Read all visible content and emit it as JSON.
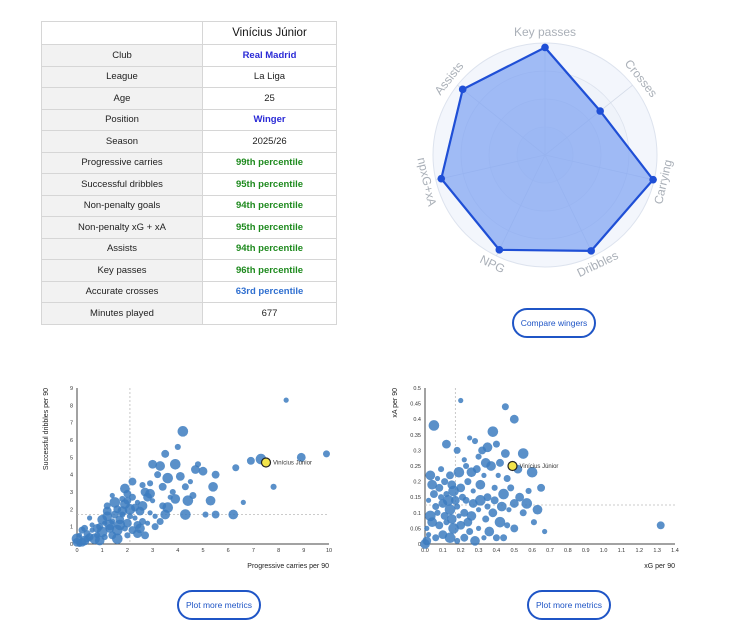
{
  "profile": {
    "player_name": "Vinícius Júnior",
    "rows": [
      {
        "label": "Club",
        "value": "Real Madrid",
        "style": "blue"
      },
      {
        "label": "League",
        "value": "La Liga",
        "style": "plain"
      },
      {
        "label": "Age",
        "value": "25",
        "style": "plain"
      },
      {
        "label": "Position",
        "value": "Winger",
        "style": "blue"
      },
      {
        "label": "Season",
        "value": "2025/26",
        "style": "plain"
      },
      {
        "label": "Progressive carries",
        "value": "99th percentile",
        "style": "green"
      },
      {
        "label": "Successful dribbles",
        "value": "95th percentile",
        "style": "green"
      },
      {
        "label": "Non-penalty goals",
        "value": "94th percentile",
        "style": "green"
      },
      {
        "label": "Non-penalty xG + xA",
        "value": "95th percentile",
        "style": "green"
      },
      {
        "label": "Assists",
        "value": "94th percentile",
        "style": "green"
      },
      {
        "label": "Key passes",
        "value": "96th percentile",
        "style": "green"
      },
      {
        "label": "Accurate crosses",
        "value": "63rd percentile",
        "style": "lightblue"
      },
      {
        "label": "Minutes played",
        "value": "677",
        "style": "plain"
      }
    ]
  },
  "buttons": {
    "compare": "Compare wingers",
    "plot_more_1": "Plot more metrics",
    "plot_more_2": "Plot more metrics"
  },
  "colors": {
    "radar_fill": "#7fa3f2",
    "radar_stroke": "#1f4fd6",
    "scatter_point": "#3d7cc0",
    "highlight": "#f2e44a",
    "button": "#1f55c6"
  },
  "chart_data": [
    {
      "type": "radar",
      "axes": [
        "Key passes",
        "Crosses",
        "Carrying",
        "Dribbles",
        "NPG",
        "npxG+xA",
        "Assists"
      ],
      "values": [
        96,
        63,
        99,
        95,
        94,
        95,
        94
      ],
      "range": [
        0,
        100
      ]
    },
    {
      "type": "scatter",
      "xlabel": "Progressive carries per 90",
      "ylabel": "Successful dribbles per 90",
      "xlim": [
        0,
        10
      ],
      "ylim": [
        0,
        9
      ],
      "xticks": [
        "0",
        "1",
        "2",
        "3",
        "4",
        "5",
        "6",
        "7",
        "8",
        "9",
        "10"
      ],
      "yticks": [
        "0",
        "1",
        "2",
        "3",
        "4",
        "5",
        "6",
        "7",
        "8",
        "9"
      ],
      "x_ref": 2.1,
      "y_ref": 1.7,
      "highlight": {
        "name": "Vinícius Júnior",
        "x": 7.5,
        "y": 4.7
      },
      "points": [
        [
          8.3,
          8.3
        ],
        [
          9.9,
          5.2
        ],
        [
          8.9,
          5.0
        ],
        [
          7.3,
          4.9
        ],
        [
          7.8,
          3.3
        ],
        [
          6.9,
          4.8
        ],
        [
          5.3,
          2.5
        ],
        [
          6.6,
          2.4
        ],
        [
          6.3,
          4.4
        ],
        [
          5.0,
          4.2
        ],
        [
          4.2,
          6.5
        ],
        [
          4.0,
          5.6
        ],
        [
          5.5,
          4.0
        ],
        [
          5.4,
          3.3
        ],
        [
          4.5,
          3.6
        ],
        [
          4.3,
          3.3
        ],
        [
          4.1,
          3.9
        ],
        [
          4.4,
          2.5
        ],
        [
          3.8,
          3.0
        ],
        [
          3.5,
          5.2
        ],
        [
          3.3,
          4.5
        ],
        [
          3.0,
          2.5
        ],
        [
          3.2,
          4.0
        ],
        [
          2.7,
          3.0
        ],
        [
          4.3,
          1.7
        ],
        [
          5.1,
          1.7
        ],
        [
          5.5,
          1.7
        ],
        [
          6.2,
          1.7
        ],
        [
          2.4,
          2.4
        ],
        [
          2.2,
          2.7
        ],
        [
          2.8,
          2.7
        ],
        [
          3.6,
          2.1
        ],
        [
          2.9,
          3.5
        ],
        [
          3.4,
          3.3
        ],
        [
          3.9,
          2.6
        ],
        [
          3.1,
          1.6
        ],
        [
          3.4,
          2.2
        ],
        [
          2.5,
          1.9
        ],
        [
          2.1,
          2.0
        ],
        [
          1.8,
          1.7
        ],
        [
          1.6,
          2.0
        ],
        [
          1.9,
          2.3
        ],
        [
          2.3,
          1.5
        ],
        [
          2.6,
          1.3
        ],
        [
          2.0,
          1.2
        ],
        [
          1.7,
          1.1
        ],
        [
          1.4,
          1.3
        ],
        [
          1.5,
          1.7
        ],
        [
          1.2,
          1.6
        ],
        [
          1.1,
          1.2
        ],
        [
          0.9,
          1.0
        ],
        [
          1.3,
          0.9
        ],
        [
          1.6,
          0.8
        ],
        [
          1.9,
          0.9
        ],
        [
          2.2,
          0.8
        ],
        [
          2.5,
          0.9
        ],
        [
          2.8,
          1.2
        ],
        [
          3.1,
          1.0
        ],
        [
          2.4,
          0.6
        ],
        [
          1.0,
          0.7
        ],
        [
          0.8,
          0.5
        ],
        [
          0.5,
          0.4
        ],
        [
          0.3,
          0.2
        ],
        [
          0.6,
          0.8
        ],
        [
          0.4,
          0.6
        ],
        [
          0.2,
          0.1
        ],
        [
          0.7,
          0.3
        ],
        [
          1.1,
          0.4
        ],
        [
          1.4,
          0.5
        ],
        [
          0.9,
          0.2
        ],
        [
          0.1,
          0.5
        ],
        [
          0.3,
          0.9
        ],
        [
          1.2,
          1.9
        ],
        [
          1.5,
          2.4
        ],
        [
          1.8,
          2.6
        ],
        [
          2.0,
          2.9
        ],
        [
          2.6,
          2.2
        ],
        [
          2.9,
          1.8
        ],
        [
          3.3,
          1.3
        ],
        [
          1.7,
          1.4
        ],
        [
          1.3,
          1.1
        ],
        [
          2.1,
          1.6
        ],
        [
          2.4,
          1.1
        ],
        [
          1.0,
          1.4
        ],
        [
          0.6,
          1.1
        ],
        [
          0.4,
          0.3
        ],
        [
          0.8,
          0.9
        ],
        [
          1.6,
          0.3
        ],
        [
          2.0,
          0.5
        ],
        [
          2.7,
          0.5
        ],
        [
          3.5,
          1.7
        ],
        [
          3.7,
          2.7
        ],
        [
          4.6,
          2.8
        ],
        [
          4.7,
          4.3
        ],
        [
          3.6,
          3.8
        ],
        [
          2.6,
          3.4
        ],
        [
          2.2,
          3.6
        ],
        [
          1.9,
          3.2
        ],
        [
          1.4,
          2.8
        ],
        [
          1.2,
          2.2
        ],
        [
          3.0,
          4.6
        ],
        [
          3.9,
          4.6
        ],
        [
          4.8,
          4.6
        ],
        [
          2.3,
          2.1
        ],
        [
          1.8,
          1.9
        ],
        [
          0.5,
          1.5
        ],
        [
          0.2,
          0.8
        ],
        [
          0.0,
          0.1
        ],
        [
          0.0,
          0.3
        ],
        [
          0.1,
          0.0
        ],
        [
          2.0,
          2.5
        ],
        [
          2.9,
          2.9
        ]
      ]
    },
    {
      "type": "scatter",
      "xlabel": "xG per 90",
      "ylabel": "xA per 90",
      "xlim": [
        0,
        1.4
      ],
      "ylim": [
        0,
        0.5
      ],
      "xticks": [
        "0.0",
        "0.1",
        "0.2",
        "0.3",
        "0.4",
        "0.5",
        "0.6",
        "0.7",
        "0.8",
        "0.9",
        "1.0",
        "1.1",
        "1.2",
        "1.3",
        "1.4"
      ],
      "yticks": [
        "0",
        "0.05",
        "0.1",
        "0.15",
        "0.2",
        "0.25",
        "0.3",
        "0.35",
        "0.4",
        "0.45",
        "0.5"
      ],
      "x_ref": 0.17,
      "y_ref": 0.125,
      "highlight": {
        "name": "Vinícius Júnior",
        "x": 0.49,
        "y": 0.25
      },
      "points": [
        [
          0.2,
          0.46
        ],
        [
          0.45,
          0.44
        ],
        [
          0.5,
          0.4
        ],
        [
          0.38,
          0.36
        ],
        [
          0.28,
          0.33
        ],
        [
          0.32,
          0.3
        ],
        [
          0.35,
          0.31
        ],
        [
          0.25,
          0.34
        ],
        [
          0.4,
          0.32
        ],
        [
          0.45,
          0.29
        ],
        [
          0.55,
          0.29
        ],
        [
          0.3,
          0.28
        ],
        [
          0.42,
          0.26
        ],
        [
          0.37,
          0.25
        ],
        [
          0.22,
          0.27
        ],
        [
          0.18,
          0.3
        ],
        [
          0.12,
          0.32
        ],
        [
          0.05,
          0.38
        ],
        [
          0.09,
          0.24
        ],
        [
          0.14,
          0.22
        ],
        [
          0.26,
          0.23
        ],
        [
          0.33,
          0.22
        ],
        [
          0.46,
          0.21
        ],
        [
          0.52,
          0.24
        ],
        [
          0.6,
          0.23
        ],
        [
          0.58,
          0.17
        ],
        [
          0.65,
          0.18
        ],
        [
          0.63,
          0.11
        ],
        [
          0.67,
          0.04
        ],
        [
          0.55,
          0.1
        ],
        [
          0.5,
          0.13
        ],
        [
          0.44,
          0.16
        ],
        [
          0.39,
          0.18
        ],
        [
          0.35,
          0.15
        ],
        [
          0.31,
          0.19
        ],
        [
          0.27,
          0.17
        ],
        [
          0.24,
          0.2
        ],
        [
          0.2,
          0.18
        ],
        [
          0.16,
          0.17
        ],
        [
          0.12,
          0.16
        ],
        [
          0.08,
          0.18
        ],
        [
          0.04,
          0.19
        ],
        [
          0.02,
          0.14
        ],
        [
          0.06,
          0.12
        ],
        [
          0.1,
          0.13
        ],
        [
          0.14,
          0.11
        ],
        [
          0.18,
          0.12
        ],
        [
          0.22,
          0.1
        ],
        [
          0.26,
          0.09
        ],
        [
          0.3,
          0.11
        ],
        [
          0.34,
          0.08
        ],
        [
          0.38,
          0.1
        ],
        [
          0.42,
          0.07
        ],
        [
          0.46,
          0.06
        ],
        [
          0.5,
          0.05
        ],
        [
          0.36,
          0.04
        ],
        [
          0.3,
          0.05
        ],
        [
          0.25,
          0.04
        ],
        [
          0.2,
          0.06
        ],
        [
          0.16,
          0.05
        ],
        [
          0.12,
          0.07
        ],
        [
          0.08,
          0.06
        ],
        [
          0.04,
          0.07
        ],
        [
          0.02,
          0.03
        ],
        [
          0.06,
          0.02
        ],
        [
          0.1,
          0.03
        ],
        [
          0.14,
          0.02
        ],
        [
          0.18,
          0.01
        ],
        [
          0.22,
          0.02
        ],
        [
          0.28,
          0.01
        ],
        [
          0.33,
          0.02
        ],
        [
          0.4,
          0.02
        ],
        [
          0.01,
          0.01
        ],
        [
          0.03,
          0.09
        ],
        [
          0.07,
          0.1
        ],
        [
          0.11,
          0.09
        ],
        [
          0.15,
          0.08
        ],
        [
          0.19,
          0.09
        ],
        [
          0.23,
          0.14
        ],
        [
          0.27,
          0.13
        ],
        [
          0.31,
          0.14
        ],
        [
          0.35,
          0.12
        ],
        [
          0.39,
          0.14
        ],
        [
          0.43,
          0.12
        ],
        [
          0.47,
          0.11
        ],
        [
          0.21,
          0.15
        ],
        [
          0.17,
          0.14
        ],
        [
          0.13,
          0.14
        ],
        [
          0.09,
          0.15
        ],
        [
          0.05,
          0.16
        ],
        [
          0.03,
          0.22
        ],
        [
          0.07,
          0.21
        ],
        [
          0.11,
          0.2
        ],
        [
          0.15,
          0.19
        ],
        [
          0.19,
          0.23
        ],
        [
          0.23,
          0.25
        ],
        [
          0.29,
          0.24
        ],
        [
          0.34,
          0.26
        ],
        [
          0.41,
          0.22
        ],
        [
          0.48,
          0.18
        ],
        [
          0.53,
          0.15
        ],
        [
          0.57,
          0.13
        ],
        [
          0.61,
          0.07
        ],
        [
          1.32,
          0.06
        ],
        [
          0.0,
          0.0
        ],
        [
          0.01,
          0.05
        ],
        [
          0.44,
          0.02
        ],
        [
          0.24,
          0.07
        ]
      ]
    }
  ]
}
